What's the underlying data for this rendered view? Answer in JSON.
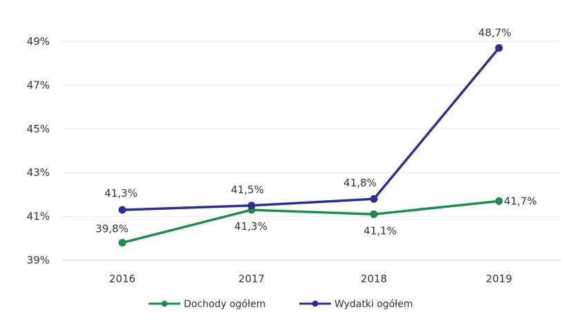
{
  "chart_data": {
    "type": "line",
    "categories": [
      "2016",
      "2017",
      "2018",
      "2019"
    ],
    "y_ticks": [
      "39%",
      "41%",
      "43%",
      "45%",
      "47%",
      "49%"
    ],
    "ylim": [
      39,
      49
    ],
    "grid": true,
    "legend_position": "bottom",
    "series": [
      {
        "name": "Dochody ogółem",
        "color": "#1e8a4c",
        "values": [
          39.8,
          41.3,
          41.1,
          41.7
        ],
        "labels": [
          "39,8%",
          "41,3%",
          "41,1%",
          "41,7%"
        ]
      },
      {
        "name": "Wydatki ogółem",
        "color": "#2b2f8f",
        "values": [
          41.3,
          41.5,
          41.8,
          48.7
        ],
        "labels": [
          "41,3%",
          "41,5%",
          "41,8%",
          "48,7%"
        ]
      }
    ]
  }
}
